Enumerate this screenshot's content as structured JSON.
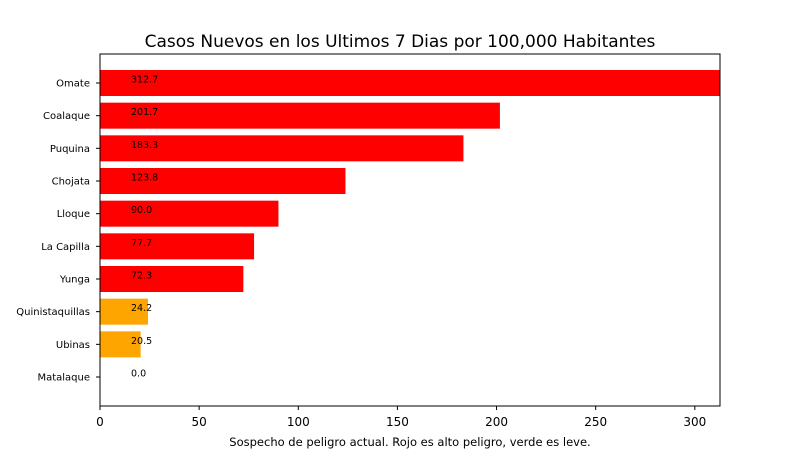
{
  "chart_data": {
    "type": "bar",
    "orientation": "horizontal",
    "title": "Casos Nuevos en los Ultimos 7 Dias por 100,000 Habitantes",
    "xlabel": "Sospecho de peligro actual. Rojo es alto peligro, verde es leve.",
    "ylabel": "",
    "xlim": [
      0,
      312.7
    ],
    "xticks": [
      0,
      50,
      100,
      150,
      200,
      250,
      300
    ],
    "grid": false,
    "categories": [
      "Omate",
      "Coalaque",
      "Puquina",
      "Chojata",
      "Lloque",
      "La Capilla",
      "Yunga",
      "Quinistaquillas",
      "Ubinas",
      "Matalaque"
    ],
    "values": [
      312.7,
      201.7,
      183.3,
      123.8,
      90.0,
      77.7,
      72.3,
      24.2,
      20.5,
      0.0
    ],
    "value_labels": [
      "312.7",
      "201.7",
      "183.3",
      "123.8",
      "90.0",
      "77.7",
      "72.3",
      "24.2",
      "20.5",
      "0.0"
    ],
    "colors": [
      "#ff0000",
      "#ff0000",
      "#ff0000",
      "#ff0000",
      "#ff0000",
      "#ff0000",
      "#ff0000",
      "#ffa500",
      "#ffa500",
      "#ffa500"
    ]
  }
}
